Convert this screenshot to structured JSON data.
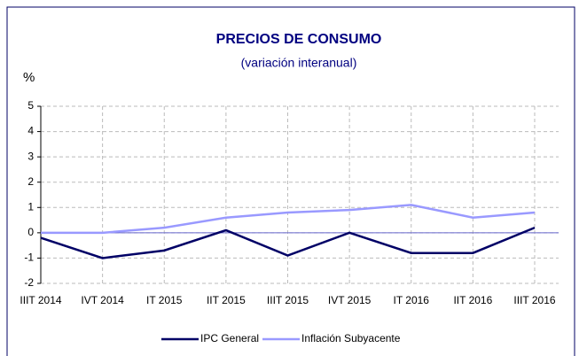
{
  "chart_data": {
    "type": "line",
    "title": "PRECIOS DE CONSUMO",
    "subtitle": "(variación interanual)",
    "y_label": "%",
    "categories": [
      "IIIT 2014",
      "IVT 2014",
      "IT 2015",
      "IIT 2015",
      "IIIT 2015",
      "IVT 2015",
      "IT 2016",
      "IIT 2016",
      "IIIT 2016"
    ],
    "series": [
      {
        "name": "IPC General",
        "color": "#000066",
        "values": [
          -0.2,
          -1.0,
          -0.7,
          0.1,
          -0.9,
          0.0,
          -0.8,
          -0.8,
          0.2
        ]
      },
      {
        "name": "Inflación Subyacente",
        "color": "#9999ff",
        "values": [
          0.0,
          0.0,
          0.2,
          0.6,
          0.8,
          0.9,
          1.1,
          0.6,
          0.8
        ]
      }
    ],
    "ylim": [
      -2,
      5
    ],
    "yticks": [
      -2,
      -1,
      0,
      1,
      2,
      3,
      4,
      5
    ],
    "grid": true,
    "legend": "bottom"
  }
}
